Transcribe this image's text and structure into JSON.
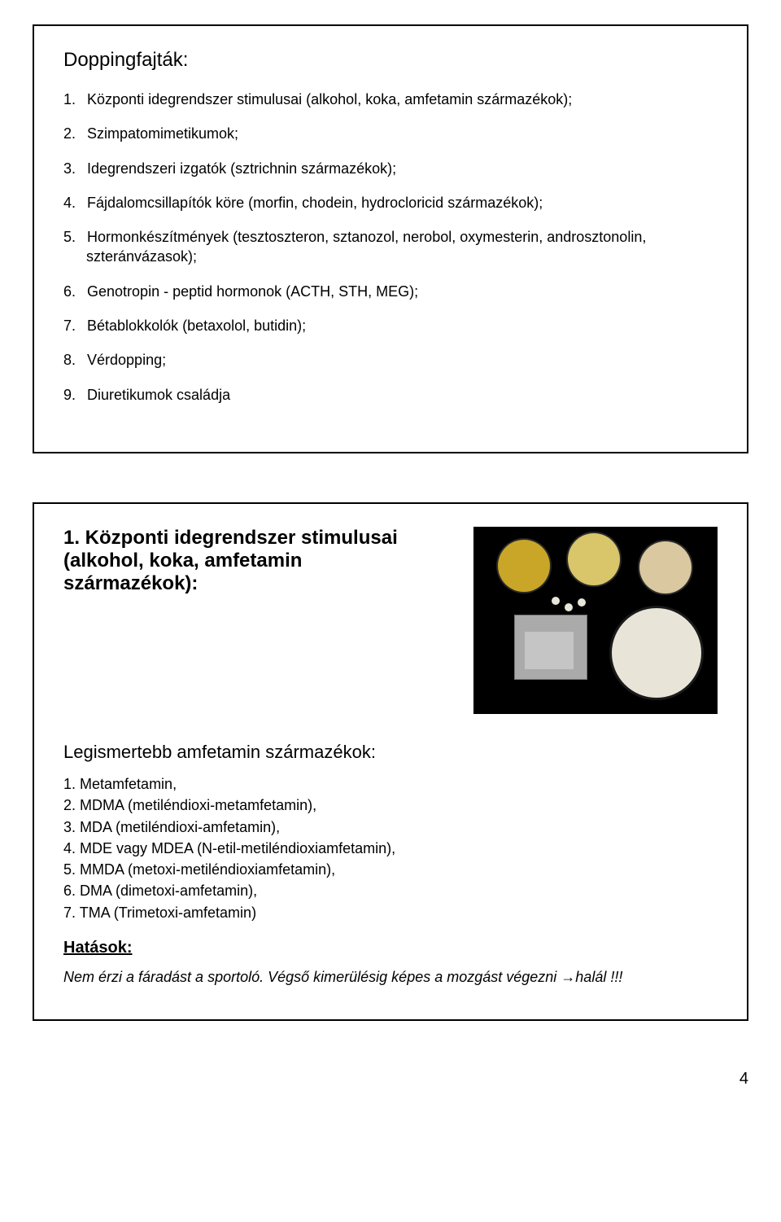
{
  "slide1": {
    "title": "Doppingfajták:",
    "items": [
      {
        "num": "1.",
        "text": "Központi idegrendszer stimulusai (alkohol, koka, amfetamin származékok);"
      },
      {
        "num": "2.",
        "text": "Szimpatomimetikumok;"
      },
      {
        "num": "3.",
        "text": "Idegrendszeri izgatók (sztrichnin származékok);"
      },
      {
        "num": "4.",
        "text": "Fájdalomcsillapítók köre (morfin, chodein, hydrocloricid származékok);"
      },
      {
        "num": "5.",
        "text": "Hormonkészítmények (tesztoszteron, sztanozol, nerobol, oxymesterin, androsztonolin, szteránvázasok);"
      },
      {
        "num": "6.",
        "text": "Genotropin - peptid hormonok (ACTH, STH, MEG);"
      },
      {
        "num": "7.",
        "text": "Bétablokkolók (betaxolol, butidin);"
      },
      {
        "num": "8.",
        "text": "Vérdopping;"
      },
      {
        "num": "9.",
        "text": "Diuretikumok családja"
      }
    ]
  },
  "slide2": {
    "title": "1. Központi idegrendszer stimulusai (alkohol, koka, amfetamin származékok):",
    "subhead": "Legismertebb amfetamin származékok:",
    "items": [
      {
        "num": "1.",
        "text": "Metamfetamin,"
      },
      {
        "num": "2.",
        "text": "MDMA (metiléndioxi-metamfetamin),"
      },
      {
        "num": "3.",
        "text": "MDA (metiléndioxi-amfetamin),"
      },
      {
        "num": "4.",
        "text": "MDE vagy MDEA (N-etil-metiléndioxiamfetamin),"
      },
      {
        "num": "5.",
        "text": "MMDA (metoxi-metiléndioxiamfetamin),"
      },
      {
        "num": "6.",
        "text": "DMA (dimetoxi-amfetamin),"
      },
      {
        "num": "7.",
        "text": "TMA (Trimetoxi-amfetamin)"
      }
    ],
    "effects_label": "Hatások:",
    "effects_text": "Nem érzi a fáradást a sportoló. Végső kimerülésig képes a mozgást végezni →halál !!!"
  },
  "page_number": "4",
  "colors": {
    "border": "#000000",
    "text": "#000000",
    "background": "#ffffff",
    "photo_bg": "#000000"
  }
}
